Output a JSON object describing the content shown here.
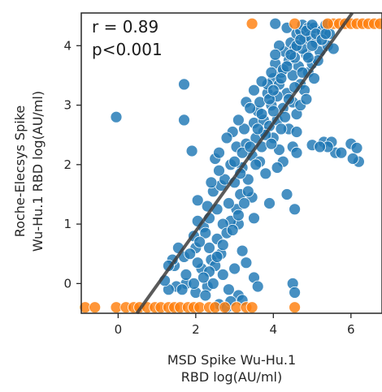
{
  "chart_data": {
    "type": "scatter",
    "xlabel_lines": [
      "MSD Spike Wu-Hu.1",
      "RBD log(AU/ml)"
    ],
    "ylabel_lines": [
      "Roche-Elecsys Spike",
      "Wu-Hu.1 RBD log(AU/ml)"
    ],
    "annotations": [
      "r = 0.89",
      "p<0.001"
    ],
    "xlim": [
      -0.95,
      6.8
    ],
    "ylim": [
      -0.5,
      4.55
    ],
    "xticks": [
      0,
      2,
      4,
      6
    ],
    "yticks": [
      0,
      1,
      2,
      3,
      4
    ],
    "grid": false,
    "regression_line": {
      "slope": 0.91,
      "intercept": -0.94,
      "color": "#3d3d3d"
    },
    "series": [
      {
        "color": "#1f77b4",
        "points": [
          [
            4.05,
            4.37
          ],
          [
            1.7,
            3.35
          ],
          [
            -0.05,
            2.8
          ],
          [
            1.7,
            2.75
          ],
          [
            1.9,
            2.23
          ],
          [
            4.5,
            2.3
          ],
          [
            5.0,
            2.33
          ],
          [
            5.3,
            2.38
          ],
          [
            5.5,
            2.38
          ],
          [
            5.6,
            2.2
          ],
          [
            5.75,
            2.2
          ],
          [
            6.0,
            2.35
          ],
          [
            6.15,
            2.28
          ],
          [
            6.2,
            2.05
          ],
          [
            6.05,
            2.1
          ],
          [
            5.4,
            2.3
          ],
          [
            5.2,
            2.3
          ],
          [
            4.6,
            2.2
          ],
          [
            4.25,
            2.05
          ],
          [
            4.1,
            1.95
          ],
          [
            4.35,
            1.5
          ],
          [
            4.55,
            1.25
          ],
          [
            3.9,
            1.35
          ],
          [
            3.5,
            1.1
          ],
          [
            3.1,
            1.0
          ],
          [
            2.9,
            1.05
          ],
          [
            3.2,
            0.55
          ],
          [
            3.3,
            0.35
          ],
          [
            3.0,
            0.25
          ],
          [
            3.5,
            0.1
          ],
          [
            3.6,
            -0.05
          ],
          [
            3.1,
            -0.2
          ],
          [
            2.85,
            -0.1
          ],
          [
            3.2,
            -0.28
          ],
          [
            4.5,
            0.0
          ],
          [
            4.55,
            -0.15
          ],
          [
            1.75,
            0.0
          ],
          [
            1.5,
            -0.05
          ],
          [
            2.0,
            -0.15
          ],
          [
            2.3,
            -0.05
          ],
          [
            2.6,
            -0.35
          ],
          [
            2.8,
            -0.4
          ],
          [
            2.9,
            -0.3
          ],
          [
            1.45,
            0.3
          ],
          [
            2.55,
            0.75
          ],
          [
            2.35,
            0.6
          ],
          [
            2.0,
            0.6
          ],
          [
            1.7,
            0.45
          ],
          [
            1.55,
            0.6
          ],
          [
            1.4,
            0.4
          ],
          [
            1.3,
            0.3
          ],
          [
            1.3,
            -0.1
          ],
          [
            1.2,
            0.05
          ],
          [
            1.65,
            -0.1
          ],
          [
            1.75,
            0.15
          ],
          [
            1.95,
            0.0
          ],
          [
            2.15,
            0.25
          ],
          [
            2.4,
            0.4
          ],
          [
            2.2,
            0.95
          ],
          [
            2.05,
            1.4
          ],
          [
            2.05,
            1.05
          ],
          [
            1.95,
            0.8
          ],
          [
            2.25,
            0.85
          ],
          [
            2.35,
            1.1
          ],
          [
            2.45,
            1.55
          ],
          [
            2.55,
            1.25
          ],
          [
            2.65,
            1.65
          ],
          [
            2.7,
            1.0
          ],
          [
            2.9,
            2.0
          ],
          [
            3.05,
            2.3
          ],
          [
            3.2,
            1.95
          ],
          [
            3.3,
            2.35
          ],
          [
            3.25,
            2.6
          ],
          [
            3.5,
            2.7
          ],
          [
            3.55,
            2.45
          ],
          [
            3.45,
            2.15
          ],
          [
            3.6,
            2.9
          ],
          [
            3.65,
            3.05
          ],
          [
            3.75,
            2.75
          ],
          [
            3.85,
            3.2
          ],
          [
            3.95,
            3.0
          ],
          [
            4.0,
            3.45
          ],
          [
            4.05,
            3.7
          ],
          [
            4.15,
            3.35
          ],
          [
            4.2,
            3.55
          ],
          [
            4.3,
            3.9
          ],
          [
            4.4,
            3.75
          ],
          [
            4.45,
            4.05
          ],
          [
            4.55,
            3.95
          ],
          [
            4.6,
            4.2
          ],
          [
            4.7,
            4.25
          ],
          [
            4.75,
            4.35
          ],
          [
            4.8,
            4.1
          ],
          [
            4.9,
            4.3
          ],
          [
            4.95,
            4.15
          ],
          [
            5.05,
            4.3
          ],
          [
            5.1,
            4.05
          ],
          [
            5.2,
            3.9
          ],
          [
            5.25,
            4.25
          ],
          [
            5.35,
            4.35
          ],
          [
            5.4,
            4.0
          ],
          [
            4.85,
            3.85
          ],
          [
            4.65,
            3.65
          ],
          [
            4.5,
            3.5
          ],
          [
            4.7,
            3.35
          ],
          [
            4.35,
            3.2
          ],
          [
            4.25,
            2.95
          ],
          [
            4.6,
            2.85
          ],
          [
            4.5,
            3.05
          ],
          [
            4.8,
            3.25
          ],
          [
            4.9,
            3.55
          ],
          [
            5.0,
            3.7
          ],
          [
            4.75,
            3.95
          ],
          [
            4.35,
            4.3
          ],
          [
            4.15,
            4.0
          ],
          [
            4.05,
            3.85
          ],
          [
            3.95,
            3.55
          ],
          [
            3.85,
            3.35
          ],
          [
            3.7,
            3.4
          ],
          [
            3.75,
            2.55
          ],
          [
            3.9,
            2.65
          ],
          [
            4.0,
            2.45
          ],
          [
            4.1,
            2.75
          ],
          [
            3.35,
            1.75
          ],
          [
            3.15,
            1.5
          ],
          [
            3.45,
            1.45
          ],
          [
            3.65,
            2.05
          ],
          [
            3.05,
            1.25
          ],
          [
            2.85,
            1.35
          ],
          [
            2.75,
            1.75
          ],
          [
            2.6,
            1.9
          ],
          [
            2.5,
            2.1
          ],
          [
            2.95,
            2.55
          ],
          [
            3.1,
            2.75
          ],
          [
            3.3,
            3.05
          ],
          [
            3.5,
            3.25
          ],
          [
            3.4,
            2.95
          ],
          [
            3.2,
            2.2
          ],
          [
            3.0,
            1.7
          ],
          [
            2.8,
            0.85
          ],
          [
            2.65,
            0.5
          ],
          [
            2.5,
            0.3
          ],
          [
            2.7,
            0.15
          ],
          [
            2.45,
            0.0
          ],
          [
            2.25,
            -0.2
          ],
          [
            3.8,
            1.85
          ],
          [
            4.15,
            2.25
          ],
          [
            4.4,
            2.6
          ],
          [
            4.6,
            2.55
          ],
          [
            4.7,
            3.0
          ],
          [
            4.85,
            3.1
          ],
          [
            5.05,
            3.45
          ],
          [
            5.15,
            3.75
          ],
          [
            5.45,
            4.2
          ],
          [
            5.55,
            3.95
          ],
          [
            5.0,
            4.0
          ],
          [
            4.55,
            3.8
          ],
          [
            4.25,
            3.6
          ],
          [
            4.1,
            3.15
          ],
          [
            4.0,
            2.9
          ],
          [
            3.8,
            2.5
          ],
          [
            3.7,
            2.3
          ],
          [
            3.55,
            2.0
          ],
          [
            3.35,
            1.55
          ],
          [
            3.25,
            1.35
          ],
          [
            3.1,
            1.15
          ],
          [
            2.95,
            0.9
          ],
          [
            2.7,
            0.65
          ],
          [
            2.55,
            0.45
          ],
          [
            2.35,
            0.2
          ],
          [
            2.2,
            0.1
          ],
          [
            2.05,
            0.35
          ],
          [
            1.85,
            0.5
          ],
          [
            2.1,
            0.7
          ],
          [
            2.3,
            1.3
          ],
          [
            2.4,
            1.7
          ],
          [
            2.6,
            2.2
          ],
          [
            2.8,
            2.45
          ],
          [
            3.0,
            2.05
          ],
          [
            3.15,
            1.85
          ],
          [
            3.4,
            2.3
          ],
          [
            3.6,
            2.6
          ],
          [
            3.7,
            2.85
          ],
          [
            3.9,
            3.1
          ],
          [
            4.0,
            3.25
          ],
          [
            4.2,
            3.45
          ],
          [
            4.35,
            3.65
          ],
          [
            4.45,
            3.85
          ],
          [
            4.6,
            4.0
          ],
          [
            4.7,
            4.1
          ],
          [
            4.85,
            4.25
          ],
          [
            5.0,
            4.35
          ],
          [
            5.1,
            4.2
          ],
          [
            5.25,
            4.1
          ],
          [
            5.35,
            4.2
          ],
          [
            4.9,
            3.8
          ],
          [
            4.75,
            3.55
          ],
          [
            4.55,
            3.3
          ],
          [
            4.4,
            3.1
          ],
          [
            4.3,
            2.8
          ],
          [
            4.2,
            2.6
          ],
          [
            3.95,
            2.35
          ]
        ]
      },
      {
        "color": "#ff7f0e",
        "points": [
          [
            -0.85,
            -0.4
          ],
          [
            -0.6,
            -0.4
          ],
          [
            -0.05,
            -0.4
          ],
          [
            0.2,
            -0.4
          ],
          [
            0.4,
            -0.4
          ],
          [
            0.55,
            -0.4
          ],
          [
            0.75,
            -0.4
          ],
          [
            0.95,
            -0.4
          ],
          [
            1.1,
            -0.4
          ],
          [
            1.3,
            -0.4
          ],
          [
            1.45,
            -0.4
          ],
          [
            1.6,
            -0.4
          ],
          [
            1.8,
            -0.4
          ],
          [
            1.95,
            -0.4
          ],
          [
            2.1,
            -0.4
          ],
          [
            2.35,
            -0.4
          ],
          [
            2.5,
            -0.4
          ],
          [
            2.75,
            -0.4
          ],
          [
            3.05,
            -0.4
          ],
          [
            3.3,
            -0.4
          ],
          [
            3.45,
            -0.4
          ],
          [
            4.55,
            -0.4
          ],
          [
            3.45,
            4.37
          ],
          [
            4.55,
            4.37
          ],
          [
            5.55,
            4.37
          ],
          [
            5.7,
            4.37
          ],
          [
            5.85,
            4.37
          ],
          [
            6.0,
            4.37
          ],
          [
            6.15,
            4.37
          ],
          [
            6.3,
            4.37
          ],
          [
            6.45,
            4.37
          ],
          [
            6.6,
            4.37
          ],
          [
            6.75,
            4.37
          ],
          [
            5.4,
            4.37
          ]
        ]
      }
    ]
  }
}
